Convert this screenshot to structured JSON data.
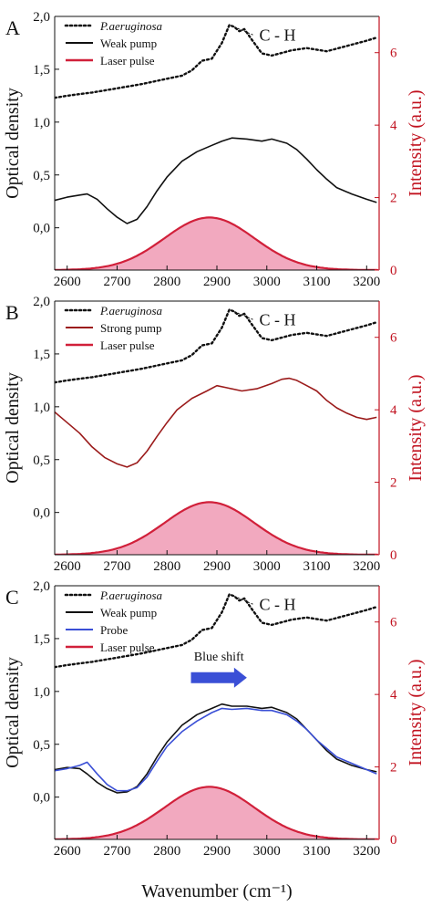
{
  "chart_data": [
    {
      "type": "line",
      "panel": "A",
      "xlim": [
        2575,
        3225
      ],
      "ylim": [
        -0.4,
        2.0
      ],
      "y2lim": [
        0,
        7
      ],
      "xticks": [
        2600,
        2700,
        2800,
        2900,
        3000,
        3100,
        3200
      ],
      "yticks": [
        "2,0",
        "1,5",
        "1,0",
        "0,5",
        "0,0"
      ],
      "ytick_values": [
        2.0,
        1.5,
        1.0,
        0.5,
        0.0
      ],
      "y2ticks": [
        0,
        2,
        4,
        6
      ],
      "legend": [
        {
          "label": "P.aeruginosa",
          "style": "dotted",
          "color": "#111111",
          "italic": true
        },
        {
          "label": "Weak pump",
          "style": "solid",
          "color": "#111111"
        },
        {
          "label": "Laser pulse",
          "style": "solid-fill",
          "color": "#d1203a"
        }
      ],
      "annotation": "C - H",
      "series": [
        {
          "name": "P.aeruginosa",
          "style": "dotted",
          "color": "#111111",
          "axis": "left",
          "x": [
            2575,
            2600,
            2650,
            2700,
            2750,
            2800,
            2830,
            2850,
            2870,
            2890,
            2910,
            2925,
            2935,
            2945,
            2955,
            2970,
            2990,
            3010,
            3050,
            3080,
            3120,
            3160,
            3200,
            3220
          ],
          "y": [
            1.23,
            1.25,
            1.28,
            1.32,
            1.36,
            1.41,
            1.44,
            1.49,
            1.58,
            1.6,
            1.75,
            1.92,
            1.9,
            1.86,
            1.88,
            1.78,
            1.65,
            1.63,
            1.68,
            1.7,
            1.67,
            1.72,
            1.77,
            1.8
          ]
        },
        {
          "name": "Weak pump",
          "style": "solid",
          "color": "#111111",
          "axis": "left",
          "x": [
            2575,
            2600,
            2625,
            2640,
            2660,
            2680,
            2700,
            2720,
            2740,
            2760,
            2780,
            2800,
            2830,
            2860,
            2890,
            2910,
            2930,
            2960,
            2990,
            3010,
            3040,
            3060,
            3080,
            3100,
            3120,
            3140,
            3170,
            3200,
            3220
          ],
          "y": [
            0.26,
            0.29,
            0.31,
            0.32,
            0.27,
            0.18,
            0.1,
            0.04,
            0.08,
            0.2,
            0.35,
            0.48,
            0.63,
            0.72,
            0.78,
            0.82,
            0.85,
            0.84,
            0.82,
            0.84,
            0.8,
            0.74,
            0.65,
            0.55,
            0.46,
            0.38,
            0.32,
            0.27,
            0.24
          ]
        },
        {
          "name": "Laser pulse",
          "style": "fill",
          "color": "#d1203a",
          "axis": "right",
          "gaussian": {
            "amplitude": 1.45,
            "center": 2885,
            "sigma": 90
          }
        }
      ]
    },
    {
      "type": "line",
      "panel": "B",
      "xlim": [
        2575,
        3225
      ],
      "ylim": [
        -0.4,
        2.0
      ],
      "y2lim": [
        0,
        7
      ],
      "xticks": [
        2600,
        2700,
        2800,
        2900,
        3000,
        3100,
        3200
      ],
      "yticks": [
        "2,0",
        "1,5",
        "1,0",
        "0,5",
        "0,0"
      ],
      "ytick_values": [
        2.0,
        1.5,
        1.0,
        0.5,
        0.0
      ],
      "y2ticks": [
        0,
        2,
        4,
        6
      ],
      "legend": [
        {
          "label": "P.aeruginosa",
          "style": "dotted",
          "color": "#111111",
          "italic": true
        },
        {
          "label": "Strong pump",
          "style": "solid",
          "color": "#9b1b1b"
        },
        {
          "label": "Laser pulse",
          "style": "solid-fill",
          "color": "#d1203a"
        }
      ],
      "annotation": "C - H",
      "series": [
        {
          "name": "P.aeruginosa",
          "style": "dotted",
          "color": "#111111",
          "axis": "left",
          "x": [
            2575,
            2600,
            2650,
            2700,
            2750,
            2800,
            2830,
            2850,
            2870,
            2890,
            2910,
            2925,
            2935,
            2945,
            2955,
            2970,
            2990,
            3010,
            3050,
            3080,
            3120,
            3160,
            3200,
            3220
          ],
          "y": [
            1.23,
            1.25,
            1.28,
            1.32,
            1.36,
            1.41,
            1.44,
            1.49,
            1.58,
            1.6,
            1.75,
            1.92,
            1.9,
            1.86,
            1.88,
            1.78,
            1.65,
            1.63,
            1.68,
            1.7,
            1.67,
            1.72,
            1.77,
            1.8
          ]
        },
        {
          "name": "Strong pump",
          "style": "solid",
          "color": "#9b1b1b",
          "axis": "left",
          "x": [
            2575,
            2600,
            2625,
            2650,
            2675,
            2700,
            2720,
            2740,
            2760,
            2780,
            2800,
            2820,
            2850,
            2880,
            2900,
            2920,
            2950,
            2980,
            3010,
            3030,
            3045,
            3060,
            3080,
            3100,
            3120,
            3140,
            3160,
            3180,
            3200,
            3220
          ],
          "y": [
            0.95,
            0.85,
            0.75,
            0.62,
            0.52,
            0.46,
            0.43,
            0.47,
            0.58,
            0.72,
            0.85,
            0.97,
            1.08,
            1.15,
            1.2,
            1.18,
            1.15,
            1.17,
            1.22,
            1.26,
            1.27,
            1.25,
            1.2,
            1.15,
            1.06,
            0.99,
            0.94,
            0.9,
            0.88,
            0.9
          ]
        },
        {
          "name": "Laser pulse",
          "style": "fill",
          "color": "#d1203a",
          "axis": "right",
          "gaussian": {
            "amplitude": 1.45,
            "center": 2885,
            "sigma": 90
          }
        }
      ]
    },
    {
      "type": "line",
      "panel": "C",
      "xlim": [
        2575,
        3225
      ],
      "ylim": [
        -0.4,
        2.0
      ],
      "y2lim": [
        0,
        7
      ],
      "xticks": [
        2600,
        2700,
        2800,
        2900,
        3000,
        3100,
        3200
      ],
      "yticks": [
        "2,0",
        "1,5",
        "1,0",
        "0,5",
        "0,0"
      ],
      "ytick_values": [
        2.0,
        1.5,
        1.0,
        0.5,
        0.0
      ],
      "y2ticks": [
        0,
        2,
        4,
        6
      ],
      "legend": [
        {
          "label": "P.aeruginosa",
          "style": "dotted",
          "color": "#111111",
          "italic": true
        },
        {
          "label": "Weak pump",
          "style": "solid",
          "color": "#111111"
        },
        {
          "label": "Probe",
          "style": "solid",
          "color": "#3a4fd6"
        },
        {
          "label": "Laser pulse",
          "style": "solid-fill",
          "color": "#d1203a"
        }
      ],
      "annotation": "C - H",
      "blue_shift_label": "Blue shift",
      "series": [
        {
          "name": "P.aeruginosa",
          "style": "dotted",
          "color": "#111111",
          "axis": "left",
          "x": [
            2575,
            2600,
            2650,
            2700,
            2750,
            2800,
            2830,
            2850,
            2870,
            2890,
            2910,
            2925,
            2935,
            2945,
            2955,
            2970,
            2990,
            3010,
            3050,
            3080,
            3120,
            3160,
            3200,
            3220
          ],
          "y": [
            1.23,
            1.25,
            1.28,
            1.32,
            1.36,
            1.41,
            1.44,
            1.49,
            1.58,
            1.6,
            1.75,
            1.92,
            1.9,
            1.86,
            1.88,
            1.78,
            1.65,
            1.63,
            1.68,
            1.7,
            1.67,
            1.72,
            1.77,
            1.8
          ]
        },
        {
          "name": "Weak pump",
          "style": "solid",
          "color": "#111111",
          "axis": "left",
          "x": [
            2575,
            2600,
            2625,
            2640,
            2660,
            2680,
            2700,
            2720,
            2740,
            2760,
            2780,
            2800,
            2830,
            2860,
            2890,
            2910,
            2930,
            2960,
            2990,
            3010,
            3040,
            3060,
            3080,
            3100,
            3120,
            3140,
            3170,
            3200,
            3220
          ],
          "y": [
            0.26,
            0.28,
            0.27,
            0.22,
            0.14,
            0.08,
            0.04,
            0.05,
            0.1,
            0.22,
            0.38,
            0.52,
            0.68,
            0.78,
            0.84,
            0.88,
            0.86,
            0.86,
            0.84,
            0.85,
            0.8,
            0.74,
            0.64,
            0.54,
            0.44,
            0.36,
            0.3,
            0.26,
            0.24
          ]
        },
        {
          "name": "Probe",
          "style": "solid",
          "color": "#3a4fd6",
          "axis": "left",
          "x": [
            2575,
            2600,
            2625,
            2640,
            2660,
            2680,
            2700,
            2720,
            2740,
            2760,
            2780,
            2800,
            2830,
            2860,
            2890,
            2910,
            2930,
            2960,
            2990,
            3010,
            3040,
            3060,
            3080,
            3100,
            3120,
            3140,
            3170,
            3200,
            3220
          ],
          "y": [
            0.25,
            0.27,
            0.3,
            0.33,
            0.22,
            0.12,
            0.06,
            0.06,
            0.09,
            0.19,
            0.34,
            0.48,
            0.62,
            0.72,
            0.8,
            0.84,
            0.83,
            0.84,
            0.82,
            0.82,
            0.78,
            0.72,
            0.64,
            0.54,
            0.46,
            0.38,
            0.32,
            0.26,
            0.22
          ]
        },
        {
          "name": "Laser pulse",
          "style": "fill",
          "color": "#d1203a",
          "axis": "right",
          "gaussian": {
            "amplitude": 1.45,
            "center": 2885,
            "sigma": 90
          }
        }
      ]
    }
  ],
  "labels": {
    "panels": [
      "A",
      "B",
      "C"
    ],
    "ylabel": "Optical density",
    "y2label": "Intensity (a.u.)",
    "xlabel": "Wavenumber (cm⁻¹)"
  },
  "colors": {
    "laser_fill": "#f2a9bf",
    "laser_line": "#d1203a",
    "right_axis": "#c1121f",
    "blue_shift_arrow": "#3a4fd6"
  }
}
